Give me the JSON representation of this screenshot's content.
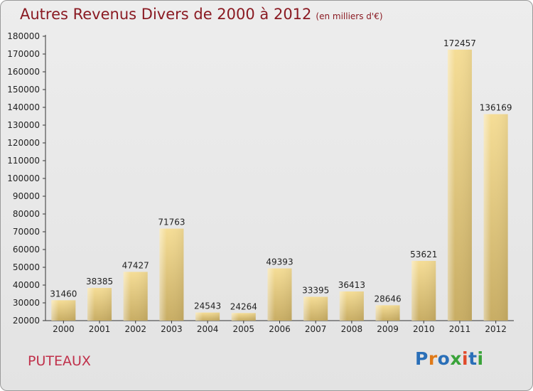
{
  "header": {
    "title": "Autres Revenus Divers de 2000 à 2012",
    "unit_note": "(en milliers d'€)"
  },
  "footer": {
    "location": "PUTEAUX",
    "logo": "Proxiti",
    "logo_colors": [
      "#2a6fb8",
      "#e07a18",
      "#2a6fb8",
      "#3aa33a",
      "#e04a2a",
      "#2a6fb8",
      "#3aa33a"
    ]
  },
  "colors": {
    "title": "#8a1a22",
    "location": "#c0304a",
    "bar_fill": "#e8cf8a",
    "axis": "#333333"
  },
  "chart_data": {
    "type": "bar",
    "title": "Autres Revenus Divers de 2000 à 2012",
    "xlabel": "",
    "ylabel": "",
    "categories": [
      "2000",
      "2001",
      "2002",
      "2003",
      "2004",
      "2005",
      "2006",
      "2007",
      "2008",
      "2009",
      "2010",
      "2011",
      "2012"
    ],
    "values": [
      31460,
      38385,
      47427,
      71763,
      24543,
      24264,
      49393,
      33395,
      36413,
      28646,
      53621,
      172457,
      136169
    ],
    "ylim": [
      20000,
      180000
    ],
    "yticks": [
      20000,
      30000,
      40000,
      50000,
      60000,
      70000,
      80000,
      90000,
      100000,
      110000,
      120000,
      130000,
      140000,
      150000,
      160000,
      170000,
      180000
    ],
    "grid": false,
    "legend": "none"
  }
}
